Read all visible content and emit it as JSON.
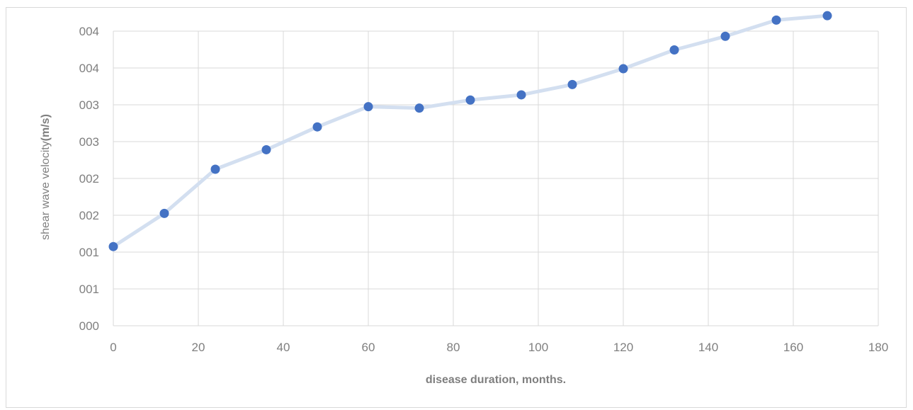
{
  "chart_data": {
    "type": "line",
    "xlabel": "disease duration, months.",
    "ylabel_prefix": "shear wave velocity",
    "ylabel_unit": "(m/s)",
    "xlim": [
      0,
      180
    ],
    "ylim": [
      0,
      8
    ],
    "x_ticks": [
      0,
      20,
      40,
      60,
      80,
      100,
      120,
      140,
      160,
      180
    ],
    "y_tick_labels": [
      "000",
      "001",
      "001",
      "002",
      "002",
      "003",
      "003",
      "004",
      "004"
    ],
    "grid": true,
    "legend": "none",
    "series": [
      {
        "x": [
          0,
          12,
          24,
          36,
          48,
          60,
          72,
          84,
          96,
          108,
          120,
          132,
          144,
          156,
          168
        ],
        "y": [
          2.15,
          3.05,
          4.25,
          4.78,
          5.4,
          5.95,
          5.91,
          6.13,
          6.27,
          6.55,
          6.98,
          7.49,
          7.86,
          8.3,
          8.42
        ],
        "line_color": "#d3dff0",
        "marker_color": "#4472c4"
      }
    ]
  }
}
